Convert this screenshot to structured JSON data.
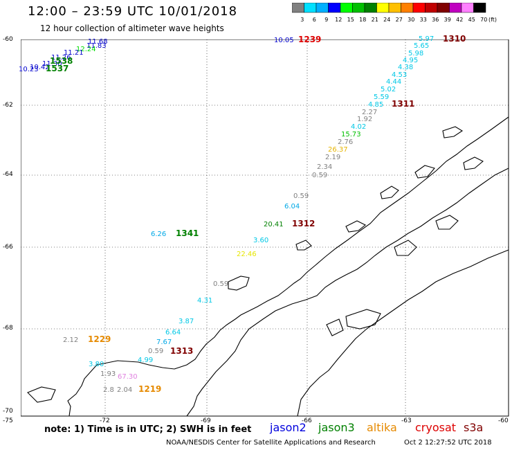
{
  "header": {
    "title": "12:00 – 23:59 UTC 10/01/2018",
    "subtitle": "12 hour collection of altimeter wave heights"
  },
  "legend": {
    "labels": [
      "3",
      "6",
      "9",
      "12",
      "15",
      "18",
      "21",
      "24",
      "27",
      "30",
      "33",
      "36",
      "39",
      "42",
      "45",
      "70"
    ],
    "unit": "(ft)",
    "colors": [
      "#808080",
      "#00e0ff",
      "#00b0ff",
      "#0000ff",
      "#00ff00",
      "#00c000",
      "#008000",
      "#ffff00",
      "#ffc000",
      "#ff8000",
      "#ff0000",
      "#c00000",
      "#800000",
      "#c000c0",
      "#ff80ff",
      "#000000"
    ]
  },
  "axes": {
    "lat_labels": [
      "-60",
      "-62",
      "-64",
      "-66",
      "-68",
      "-70"
    ],
    "lon_labels": [
      "-75",
      "-72",
      "-69",
      "-66",
      "-63",
      "-60"
    ]
  },
  "points": [
    {
      "text": "11.68",
      "color": "#0000cc"
    },
    {
      "text": "11.83",
      "color": "#0000cc"
    },
    {
      "text": "12.24",
      "color": "#00dd00"
    },
    {
      "text": "11.21",
      "color": "#0000cc"
    },
    {
      "text": "11.26",
      "color": "#0000cc"
    },
    {
      "text": "11.30",
      "color": "#0000cc"
    },
    {
      "text": "10.42",
      "color": "#0000cc"
    },
    {
      "text": "10.23",
      "color": "#0000cc"
    },
    {
      "text": "10.05",
      "color": "#0000cc"
    },
    {
      "text": "5.97",
      "color": "#00c8e6"
    },
    {
      "text": "5.65",
      "color": "#00c8e6"
    },
    {
      "text": "5.98",
      "color": "#00c8e6"
    },
    {
      "text": "4.95",
      "color": "#00c8e6"
    },
    {
      "text": "4.38",
      "color": "#00c8e6"
    },
    {
      "text": "4.53",
      "color": "#00c8e6"
    },
    {
      "text": "4.44",
      "color": "#00c8e6"
    },
    {
      "text": "5.02",
      "color": "#00c8e6"
    },
    {
      "text": "5.59",
      "color": "#00c8e6"
    },
    {
      "text": "4.85",
      "color": "#00c8e6"
    },
    {
      "text": "2.27",
      "color": "#808080"
    },
    {
      "text": "1.92",
      "color": "#808080"
    },
    {
      "text": "4.02",
      "color": "#00c8e6"
    },
    {
      "text": "15.73",
      "color": "#00c000"
    },
    {
      "text": "2.76",
      "color": "#808080"
    },
    {
      "text": "26.37",
      "color": "#e6b400"
    },
    {
      "text": "2.19",
      "color": "#808080"
    },
    {
      "text": "2.34",
      "color": "#808080"
    },
    {
      "text": "0.59",
      "color": "#808080"
    },
    {
      "text": "0.59",
      "color": "#808080"
    },
    {
      "text": "6.04",
      "color": "#00a8e6"
    },
    {
      "text": "20.41",
      "color": "#008000"
    },
    {
      "text": "6.26",
      "color": "#00a8e6"
    },
    {
      "text": "3.60",
      "color": "#00c8e6"
    },
    {
      "text": "22.46",
      "color": "#e6e600"
    },
    {
      "text": "0.59",
      "color": "#808080"
    },
    {
      "text": "4.31",
      "color": "#00c8e6"
    },
    {
      "text": "3.87",
      "color": "#00c8e6"
    },
    {
      "text": "6.64",
      "color": "#00c8e6"
    },
    {
      "text": "7.67",
      "color": "#00a8e6"
    },
    {
      "text": "0.59",
      "color": "#808080"
    },
    {
      "text": "2.12",
      "color": "#808080"
    },
    {
      "text": "4.99",
      "color": "#00c8e6"
    },
    {
      "text": "3.80",
      "color": "#00c8e6"
    },
    {
      "text": "1.93",
      "color": "#808080"
    },
    {
      "text": "67.30",
      "color": "#e080e0"
    },
    {
      "text": "2.8",
      "color": "#808080"
    },
    {
      "text": "2.04",
      "color": "#808080"
    }
  ],
  "times": [
    {
      "text": "1538",
      "color": "#008000"
    },
    {
      "text": "1537",
      "color": "#008000"
    },
    {
      "text": "1239",
      "color": "#dd0000"
    },
    {
      "text": "1310",
      "color": "#800000"
    },
    {
      "text": "1311",
      "color": "#800000"
    },
    {
      "text": "1312",
      "color": "#800000"
    },
    {
      "text": "1341",
      "color": "#008000"
    },
    {
      "text": "1229",
      "color": "#e68a00"
    },
    {
      "text": "1313",
      "color": "#800000"
    },
    {
      "text": "1219",
      "color": "#e68a00"
    }
  ],
  "footer": {
    "note": "note:  1) Time is in UTC;  2) SWH is in feet",
    "satellites": [
      {
        "name": "jason2",
        "color": "#0000dd"
      },
      {
        "name": "jason3",
        "color": "#008000"
      },
      {
        "name": "altika",
        "color": "#e68a00"
      },
      {
        "name": "cryosat",
        "color": "#dd0000"
      },
      {
        "name": "s3a",
        "color": "#800000"
      }
    ],
    "credit": "NOAA/NESDIS Center for Satellite Applications and Research",
    "timestamp": "Oct  2 12:27:52 UTC 2018"
  }
}
